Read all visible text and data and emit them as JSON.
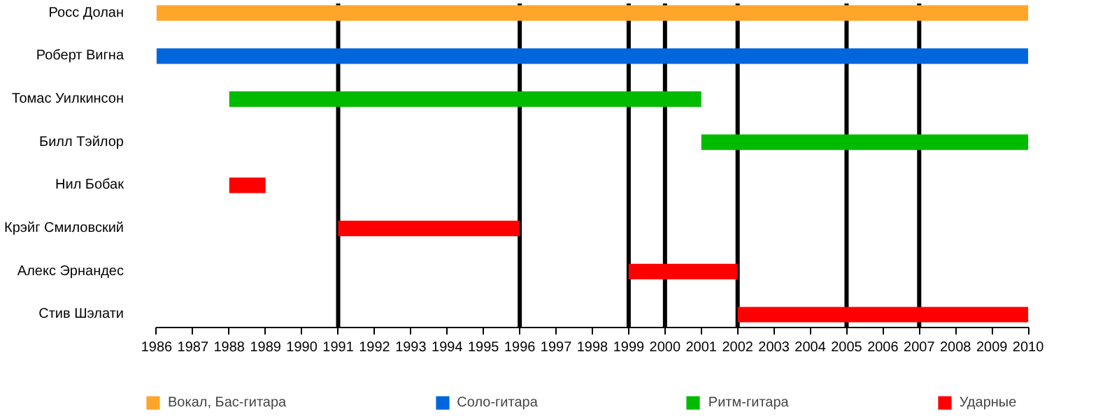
{
  "chart_data": {
    "type": "bar",
    "orientation": "horizontal",
    "categories": [
      "Росс Долан",
      "Роберт Вигна",
      "Томас Уилкинсон",
      "Билл Тэйлор",
      "Нил Бобак",
      "Крэйг Смиловский",
      "Алекс Эрнандес",
      "Стив Шэлати"
    ],
    "series": [
      {
        "name": "Вокал, Бас-гитара",
        "color": "#ffa52a",
        "values": [
          24,
          null,
          null,
          null,
          null,
          null,
          null,
          null
        ],
        "base": [
          1986,
          null,
          null,
          null,
          null,
          null,
          null,
          null
        ]
      },
      {
        "name": "Соло-гитара",
        "color": "#0066dd",
        "values": [
          null,
          24,
          null,
          null,
          null,
          null,
          null,
          null
        ],
        "base": [
          null,
          1986,
          null,
          null,
          null,
          null,
          null,
          null
        ]
      },
      {
        "name": "Ритм-гитара",
        "color": "#00bb00",
        "values": [
          null,
          null,
          13,
          9,
          null,
          null,
          null,
          null
        ],
        "base": [
          null,
          null,
          1988,
          2001,
          null,
          null,
          null,
          null
        ]
      },
      {
        "name": "Ударные",
        "color": "#ff0000",
        "values": [
          null,
          null,
          null,
          null,
          1,
          5,
          3,
          8
        ],
        "base": [
          null,
          null,
          null,
          null,
          1988,
          1991,
          1999,
          2002
        ]
      }
    ],
    "xlim": [
      1986,
      2010
    ],
    "xticks": [
      1986,
      1987,
      1988,
      1989,
      1990,
      1991,
      1992,
      1993,
      1994,
      1995,
      1996,
      1997,
      1998,
      1999,
      2000,
      2001,
      2002,
      2003,
      2004,
      2005,
      2006,
      2007,
      2008,
      2009,
      2010
    ],
    "ref_lines": [
      {
        "axis": "x",
        "value": 1991,
        "color": "#000000"
      },
      {
        "axis": "x",
        "value": 1996,
        "color": "#000000"
      },
      {
        "axis": "x",
        "value": 1999,
        "color": "#000000"
      },
      {
        "axis": "x",
        "value": 2000,
        "color": "#000000"
      },
      {
        "axis": "x",
        "value": 2002,
        "color": "#000000"
      },
      {
        "axis": "x",
        "value": 2005,
        "color": "#000000"
      },
      {
        "axis": "x",
        "value": 2007,
        "color": "#000000"
      }
    ],
    "grid": false,
    "legend": "bottom"
  }
}
